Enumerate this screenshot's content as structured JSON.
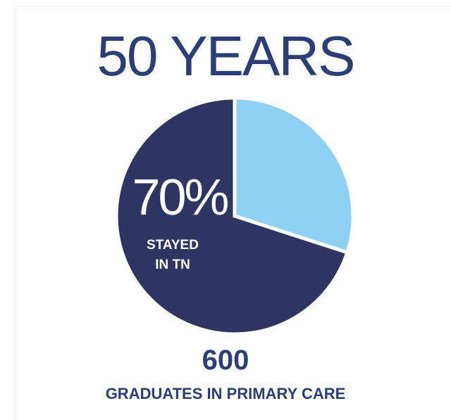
{
  "title": "50 YEARS",
  "chart_data": {
    "type": "pie",
    "title": "50 YEARS",
    "slices": [
      {
        "label": "STAYED IN TN",
        "value": 70,
        "color": "#2d3562"
      },
      {
        "label": "",
        "value": 30,
        "color": "#8fd1f3"
      }
    ],
    "annotations": {
      "percent_label": "70%",
      "slice_label_line1": "STAYED",
      "slice_label_line2": "IN TN"
    }
  },
  "footer": {
    "count": "600",
    "caption": "GRADUATES IN PRIMARY CARE"
  }
}
